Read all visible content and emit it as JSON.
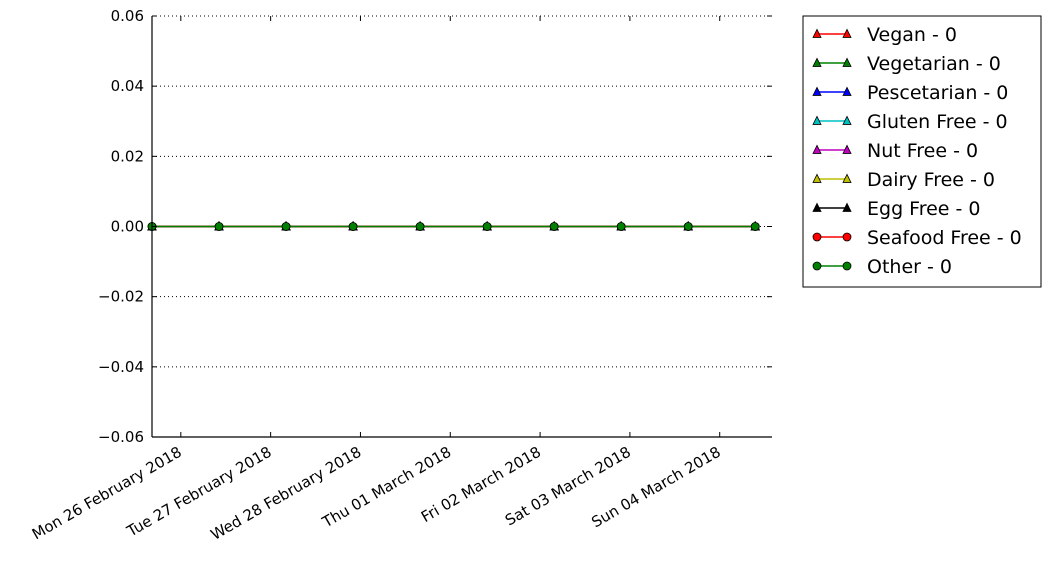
{
  "chart_data": {
    "type": "line",
    "title": "",
    "xlabel": "",
    "ylabel": "",
    "ylim": [
      -0.06,
      0.06
    ],
    "yticks": [
      0.06,
      0.04,
      0.02,
      0.0,
      -0.02,
      -0.04,
      -0.06
    ],
    "ytick_labels": [
      "0.06",
      "0.04",
      "0.02",
      "0.00",
      "−0.02",
      "−0.04",
      "−0.06"
    ],
    "x": [
      0,
      1,
      2,
      3,
      4,
      5,
      6,
      7,
      8,
      9
    ],
    "xlim": [
      0,
      9.25
    ],
    "xtick_positions": [
      0.43,
      1.77,
      3.11,
      4.45,
      5.79,
      7.13,
      8.47
    ],
    "xtick_labels": [
      "Mon 26 February 2018",
      "Tue 27 February 2018",
      "Wed 28 February 2018",
      "Thu 01 March 2018",
      "Fri 02 March 2018",
      "Sat 03 March 2018",
      "Sun 04 March 2018"
    ],
    "grid": "y-dotted",
    "legend_position": "outside-right",
    "series": [
      {
        "name": "Vegan - 0",
        "color": "#ff0000",
        "marker": "triangle",
        "values": [
          0,
          0,
          0,
          0,
          0,
          0,
          0,
          0,
          0,
          0
        ]
      },
      {
        "name": "Vegetarian - 0",
        "color": "#008000",
        "marker": "triangle",
        "values": [
          0,
          0,
          0,
          0,
          0,
          0,
          0,
          0,
          0,
          0
        ]
      },
      {
        "name": "Pescetarian - 0",
        "color": "#0000ff",
        "marker": "triangle",
        "values": [
          0,
          0,
          0,
          0,
          0,
          0,
          0,
          0,
          0,
          0
        ]
      },
      {
        "name": "Gluten Free - 0",
        "color": "#00bfbf",
        "marker": "triangle",
        "values": [
          0,
          0,
          0,
          0,
          0,
          0,
          0,
          0,
          0,
          0
        ]
      },
      {
        "name": "Nut Free - 0",
        "color": "#bf00bf",
        "marker": "triangle",
        "values": [
          0,
          0,
          0,
          0,
          0,
          0,
          0,
          0,
          0,
          0
        ]
      },
      {
        "name": "Dairy Free - 0",
        "color": "#bfbf00",
        "marker": "triangle",
        "values": [
          0,
          0,
          0,
          0,
          0,
          0,
          0,
          0,
          0,
          0
        ]
      },
      {
        "name": "Egg Free - 0",
        "color": "#000000",
        "marker": "triangle",
        "values": [
          0,
          0,
          0,
          0,
          0,
          0,
          0,
          0,
          0,
          0
        ]
      },
      {
        "name": "Seafood Free - 0",
        "color": "#ff0000",
        "marker": "circle",
        "values": [
          0,
          0,
          0,
          0,
          0,
          0,
          0,
          0,
          0,
          0
        ]
      },
      {
        "name": "Other - 0",
        "color": "#008000",
        "marker": "circle",
        "values": [
          0,
          0,
          0,
          0,
          0,
          0,
          0,
          0,
          0,
          0
        ]
      }
    ]
  }
}
